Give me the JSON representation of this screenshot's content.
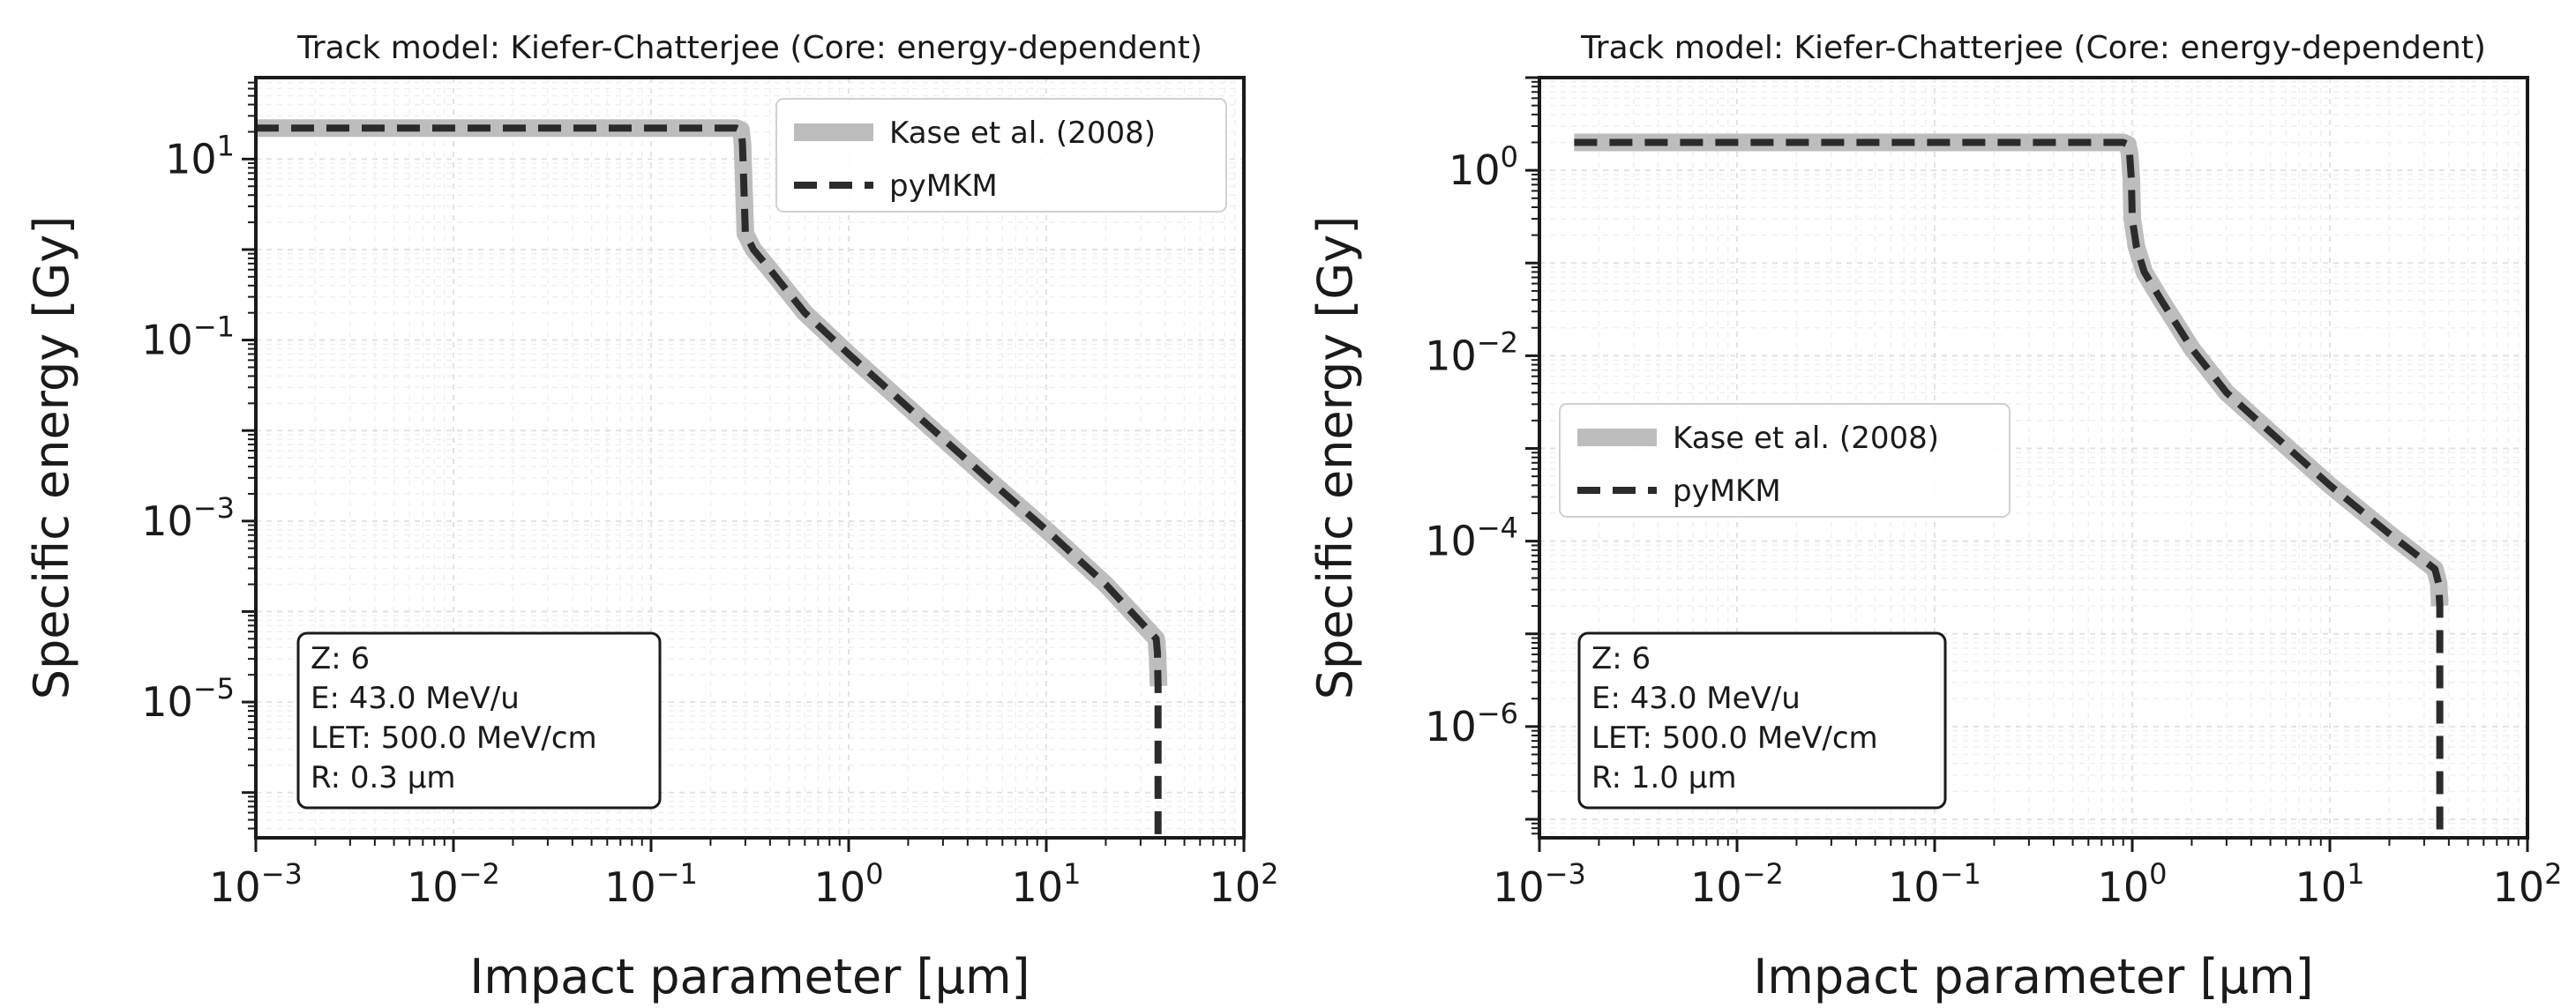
{
  "chart_data": [
    {
      "type": "line",
      "title": "Track model: Kiefer-Chatterjee (Core: energy-dependent)",
      "xlabel": "Impact parameter [μm]",
      "ylabel": "Specific energy [Gy]",
      "xscale": "log",
      "yscale": "log",
      "xlim_exp": [
        -3,
        2
      ],
      "ylim_exp": [
        -6.5,
        1.9
      ],
      "xtick_exps": [
        -3,
        -2,
        -1,
        0,
        1,
        2
      ],
      "ytick_exps": [
        1,
        -1,
        -3,
        -5
      ],
      "legend_position": "top-right",
      "series": [
        {
          "name": "Kase et al. (2008)",
          "color": "#bdbdbd",
          "style": "solid",
          "x": [
            0.001,
            0.27,
            0.285,
            0.29,
            0.295,
            0.3,
            0.33,
            0.4,
            0.6,
            1.0,
            2.0,
            5.0,
            10.0,
            20.0,
            36.0,
            36.5,
            37.0
          ],
          "y": [
            22.0,
            22.0,
            21.0,
            15.0,
            5.0,
            1.5,
            1.0,
            0.6,
            0.2,
            0.07,
            0.018,
            0.003,
            0.0008,
            0.0002,
            5e-05,
            3.5e-05,
            1.5e-05
          ]
        },
        {
          "name": "pyMKM",
          "color": "#2b2b2b",
          "style": "dashed",
          "x": [
            0.001,
            0.27,
            0.285,
            0.29,
            0.295,
            0.3,
            0.33,
            0.4,
            0.6,
            1.0,
            2.0,
            5.0,
            10.0,
            20.0,
            36.0,
            36.5,
            36.8,
            36.8
          ],
          "y": [
            22.0,
            22.0,
            21.0,
            15.0,
            5.0,
            1.5,
            1.0,
            0.6,
            0.2,
            0.07,
            0.018,
            0.003,
            0.0008,
            0.0002,
            5e-05,
            3.5e-05,
            1.5e-05,
            3e-07
          ]
        }
      ],
      "info": [
        "Z: 6",
        "E: 43.0 MeV/u",
        "LET: 500.0 MeV/cm",
        "R: 0.3 μm"
      ]
    },
    {
      "type": "line",
      "title": "Track model: Kiefer-Chatterjee (Core: energy-dependent)",
      "xlabel": "Impact parameter [μm]",
      "ylabel": "Specific energy [Gy]",
      "xscale": "log",
      "yscale": "log",
      "xlim_exp": [
        -3,
        2
      ],
      "ylim_exp": [
        -7.2,
        1.0
      ],
      "xtick_exps": [
        -3,
        -2,
        -1,
        0,
        1,
        2
      ],
      "ytick_exps": [
        0,
        -2,
        -4,
        -6
      ],
      "legend_position": "center-left",
      "series": [
        {
          "name": "Kase et al. (2008)",
          "color": "#bdbdbd",
          "style": "solid",
          "x": [
            0.0015,
            0.9,
            0.95,
            0.97,
            0.99,
            1.0,
            1.05,
            1.15,
            1.4,
            2.0,
            3.0,
            5.0,
            10.0,
            20.0,
            34.0,
            35.5,
            36.0
          ],
          "y": [
            2.0,
            2.0,
            1.9,
            1.5,
            0.8,
            0.3,
            0.15,
            0.08,
            0.04,
            0.012,
            0.004,
            0.0015,
            0.0004,
            0.00012,
            5e-05,
            3.5e-05,
            2e-05
          ]
        },
        {
          "name": "pyMKM",
          "color": "#2b2b2b",
          "style": "dashed",
          "x": [
            0.0015,
            0.9,
            0.95,
            0.97,
            0.99,
            1.0,
            1.05,
            1.15,
            1.4,
            2.0,
            3.0,
            5.0,
            10.0,
            20.0,
            34.0,
            35.5,
            36.0,
            36.0
          ],
          "y": [
            2.0,
            2.0,
            1.9,
            1.5,
            0.8,
            0.3,
            0.15,
            0.08,
            0.04,
            0.012,
            0.004,
            0.0015,
            0.0004,
            0.00012,
            5e-05,
            3.5e-05,
            2e-05,
            7e-08
          ]
        }
      ],
      "info": [
        "Z: 6",
        "E: 43.0 MeV/u",
        "LET: 500.0 MeV/cm",
        "R: 1.0 μm"
      ]
    }
  ]
}
